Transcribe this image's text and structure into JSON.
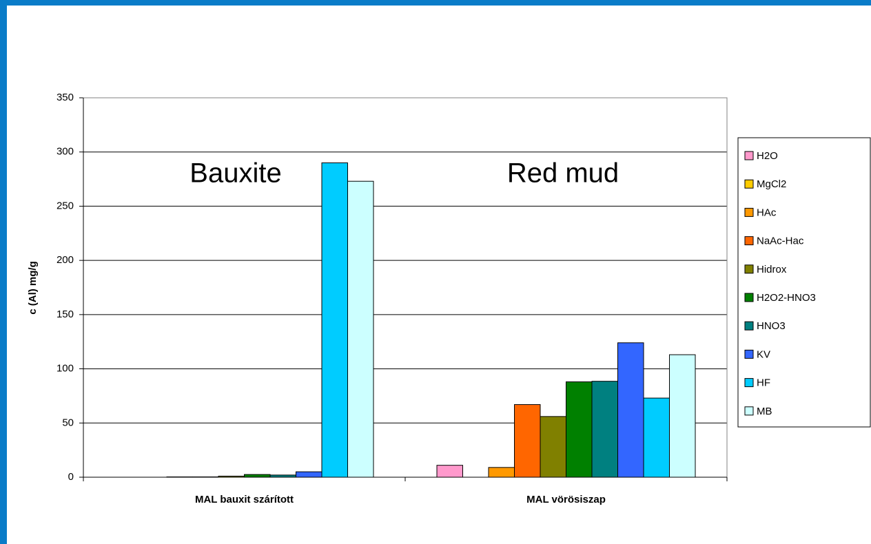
{
  "chart_data": {
    "type": "bar",
    "ylabel": "c (Al) mg/g",
    "annotations": [
      "Bauxite",
      "Red mud"
    ],
    "categories": [
      "MAL bauxit szárított",
      "MAL vörösiszap"
    ],
    "series": [
      {
        "name": "H2O",
        "color": "#ff99cc",
        "values": [
          0,
          11
        ]
      },
      {
        "name": "MgCl2",
        "color": "#ffcc00",
        "values": [
          0,
          0
        ]
      },
      {
        "name": "HAc",
        "color": "#ff9900",
        "values": [
          0.3,
          9
        ]
      },
      {
        "name": "NaAc-Hac",
        "color": "#ff6600",
        "values": [
          0.3,
          67
        ]
      },
      {
        "name": "Hidrox",
        "color": "#808000",
        "values": [
          1,
          56
        ]
      },
      {
        "name": "H2O2-HNO3",
        "color": "#008000",
        "values": [
          2.5,
          88
        ]
      },
      {
        "name": "HNO3",
        "color": "#008080",
        "values": [
          2,
          88.5
        ]
      },
      {
        "name": "KV",
        "color": "#3366ff",
        "values": [
          5,
          124
        ]
      },
      {
        "name": "HF",
        "color": "#00ccff",
        "values": [
          290,
          73
        ]
      },
      {
        "name": "MB",
        "color": "#ccffff",
        "values": [
          273,
          113
        ]
      }
    ],
    "ylim": [
      0,
      350
    ],
    "yticks": [
      0,
      50,
      100,
      150,
      200,
      250,
      300,
      350
    ],
    "grid": true,
    "legend": "right"
  }
}
